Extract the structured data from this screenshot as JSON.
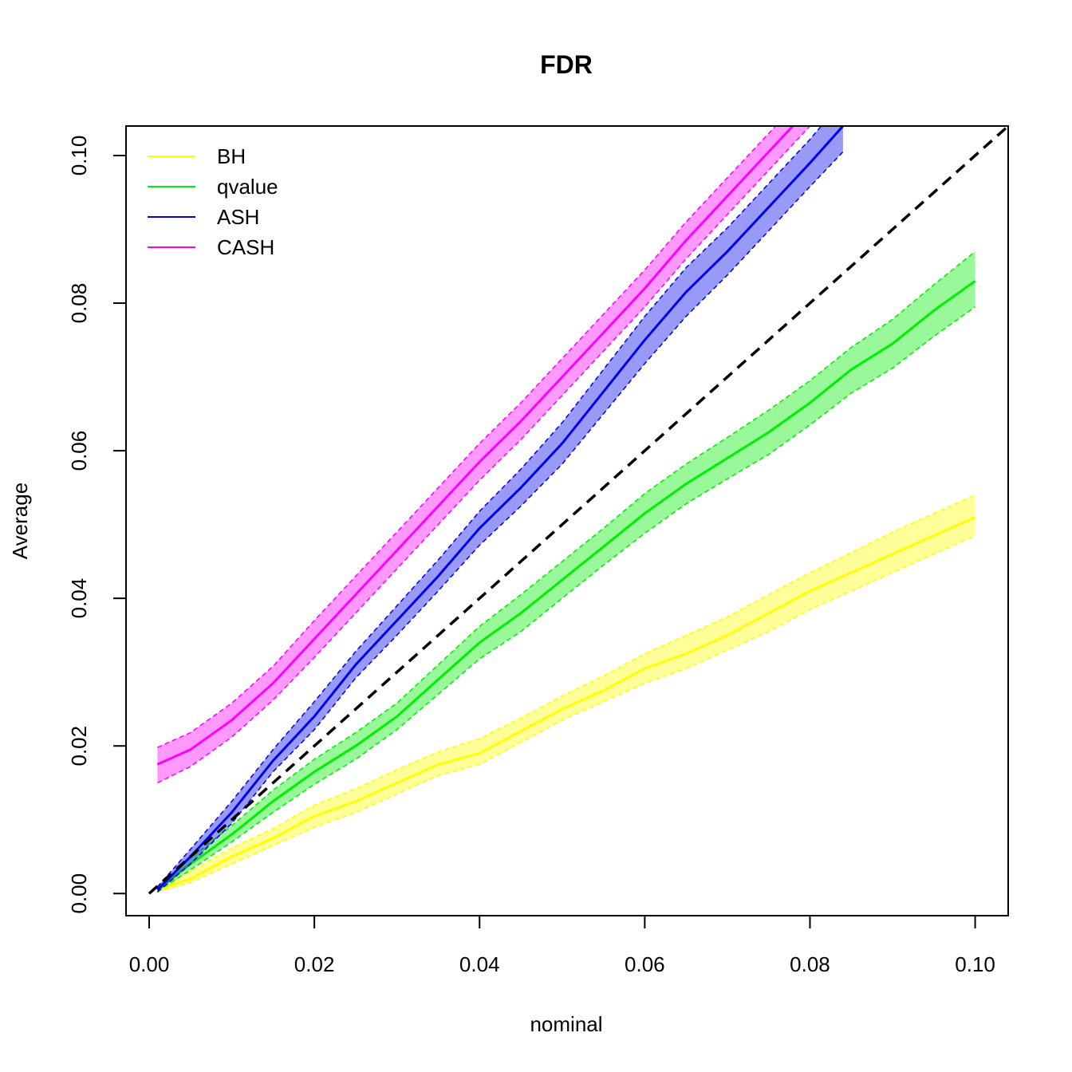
{
  "chart_data": {
    "type": "line",
    "title": "FDR",
    "xlabel": "nominal",
    "ylabel": "Average",
    "xlim": [
      -0.0028,
      0.104
    ],
    "ylim": [
      -0.003,
      0.104
    ],
    "xticks": [
      "0.00",
      "0.02",
      "0.04",
      "0.06",
      "0.08",
      "0.10"
    ],
    "xtick_values": [
      0.0,
      0.02,
      0.04,
      0.06,
      0.08,
      0.1
    ],
    "yticks": [
      "0.00",
      "0.02",
      "0.04",
      "0.06",
      "0.08",
      "0.10"
    ],
    "ytick_values": [
      0.0,
      0.02,
      0.04,
      0.06,
      0.08,
      0.1
    ],
    "grid": false,
    "legend_position": "top-left",
    "reference_line": {
      "x": [
        0.0,
        0.104
      ],
      "y": [
        0.0,
        0.104
      ],
      "color": "#000000",
      "style": "dashed"
    },
    "series": [
      {
        "name": "BH",
        "color": "#ffff00",
        "x": [
          0.001,
          0.005,
          0.01,
          0.015,
          0.02,
          0.025,
          0.03,
          0.035,
          0.04,
          0.045,
          0.05,
          0.055,
          0.06,
          0.065,
          0.07,
          0.075,
          0.08,
          0.085,
          0.09,
          0.095,
          0.1
        ],
        "y": [
          0.0005,
          0.002,
          0.005,
          0.0075,
          0.0105,
          0.0125,
          0.015,
          0.0175,
          0.019,
          0.022,
          0.025,
          0.0275,
          0.0305,
          0.0325,
          0.035,
          0.038,
          0.041,
          0.0435,
          0.046,
          0.0485,
          0.051
        ],
        "lower": [
          0.0002,
          0.0015,
          0.004,
          0.0065,
          0.009,
          0.011,
          0.0135,
          0.016,
          0.0175,
          0.0205,
          0.0235,
          0.026,
          0.0285,
          0.0305,
          0.033,
          0.0355,
          0.0385,
          0.041,
          0.0435,
          0.046,
          0.0485
        ],
        "upper": [
          0.0008,
          0.003,
          0.0062,
          0.0088,
          0.012,
          0.0142,
          0.0168,
          0.0192,
          0.021,
          0.0238,
          0.0268,
          0.0295,
          0.0325,
          0.035,
          0.0375,
          0.0405,
          0.0435,
          0.0462,
          0.049,
          0.0515,
          0.054
        ]
      },
      {
        "name": "qvalue",
        "color": "#00ee00",
        "x": [
          0.001,
          0.005,
          0.01,
          0.015,
          0.02,
          0.025,
          0.03,
          0.035,
          0.04,
          0.045,
          0.05,
          0.055,
          0.06,
          0.065,
          0.07,
          0.075,
          0.08,
          0.085,
          0.09,
          0.095,
          0.1
        ],
        "y": [
          0.0005,
          0.004,
          0.008,
          0.0125,
          0.0165,
          0.02,
          0.024,
          0.029,
          0.034,
          0.038,
          0.0425,
          0.047,
          0.0515,
          0.0555,
          0.059,
          0.0625,
          0.0665,
          0.071,
          0.0745,
          0.079,
          0.083
        ],
        "lower": [
          0.0003,
          0.0032,
          0.007,
          0.011,
          0.0148,
          0.0182,
          0.0222,
          0.027,
          0.0318,
          0.0355,
          0.04,
          0.0445,
          0.0488,
          0.0528,
          0.0562,
          0.0595,
          0.0635,
          0.0678,
          0.0712,
          0.0755,
          0.0795
        ],
        "upper": [
          0.0009,
          0.0048,
          0.0092,
          0.014,
          0.0182,
          0.0218,
          0.0258,
          0.031,
          0.0362,
          0.0405,
          0.045,
          0.0495,
          0.0542,
          0.0582,
          0.0618,
          0.0655,
          0.0695,
          0.074,
          0.0778,
          0.0825,
          0.087
        ]
      },
      {
        "name": "ASH",
        "color": "#0000ee",
        "x": [
          0.001,
          0.005,
          0.01,
          0.015,
          0.02,
          0.025,
          0.03,
          0.035,
          0.04,
          0.045,
          0.05,
          0.055,
          0.06,
          0.065,
          0.07,
          0.075,
          0.08,
          0.084
        ],
        "y": [
          0.0005,
          0.005,
          0.011,
          0.018,
          0.024,
          0.031,
          0.037,
          0.043,
          0.0495,
          0.055,
          0.061,
          0.068,
          0.075,
          0.0815,
          0.087,
          0.093,
          0.099,
          0.104
        ],
        "lower": [
          0.0002,
          0.004,
          0.0095,
          0.0165,
          0.0222,
          0.0292,
          0.035,
          0.041,
          0.0472,
          0.0525,
          0.0582,
          0.065,
          0.0718,
          0.0782,
          0.0838,
          0.0898,
          0.0958,
          0.1005
        ],
        "upper": [
          0.0009,
          0.006,
          0.0125,
          0.0195,
          0.026,
          0.0328,
          0.039,
          0.0452,
          0.0518,
          0.0575,
          0.0638,
          0.071,
          0.0782,
          0.0848,
          0.0902,
          0.0962,
          0.1022,
          0.1075
        ]
      },
      {
        "name": "CASH",
        "color": "#ff00ff",
        "x": [
          0.001,
          0.005,
          0.01,
          0.015,
          0.02,
          0.025,
          0.03,
          0.035,
          0.04,
          0.045,
          0.05,
          0.055,
          0.06,
          0.065,
          0.07,
          0.075,
          0.08
        ],
        "y": [
          0.0175,
          0.0195,
          0.0235,
          0.0285,
          0.0345,
          0.0405,
          0.0465,
          0.0525,
          0.0585,
          0.064,
          0.07,
          0.076,
          0.082,
          0.0885,
          0.0945,
          0.1005,
          0.1065
        ],
        "lower": [
          0.015,
          0.0172,
          0.0212,
          0.0262,
          0.032,
          0.038,
          0.044,
          0.05,
          0.056,
          0.0615,
          0.0675,
          0.0735,
          0.0795,
          0.086,
          0.092,
          0.098,
          0.104
        ],
        "upper": [
          0.0198,
          0.0218,
          0.0258,
          0.0308,
          0.037,
          0.043,
          0.049,
          0.055,
          0.061,
          0.0665,
          0.0725,
          0.0785,
          0.0845,
          0.091,
          0.097,
          0.103,
          0.109
        ]
      }
    ]
  }
}
